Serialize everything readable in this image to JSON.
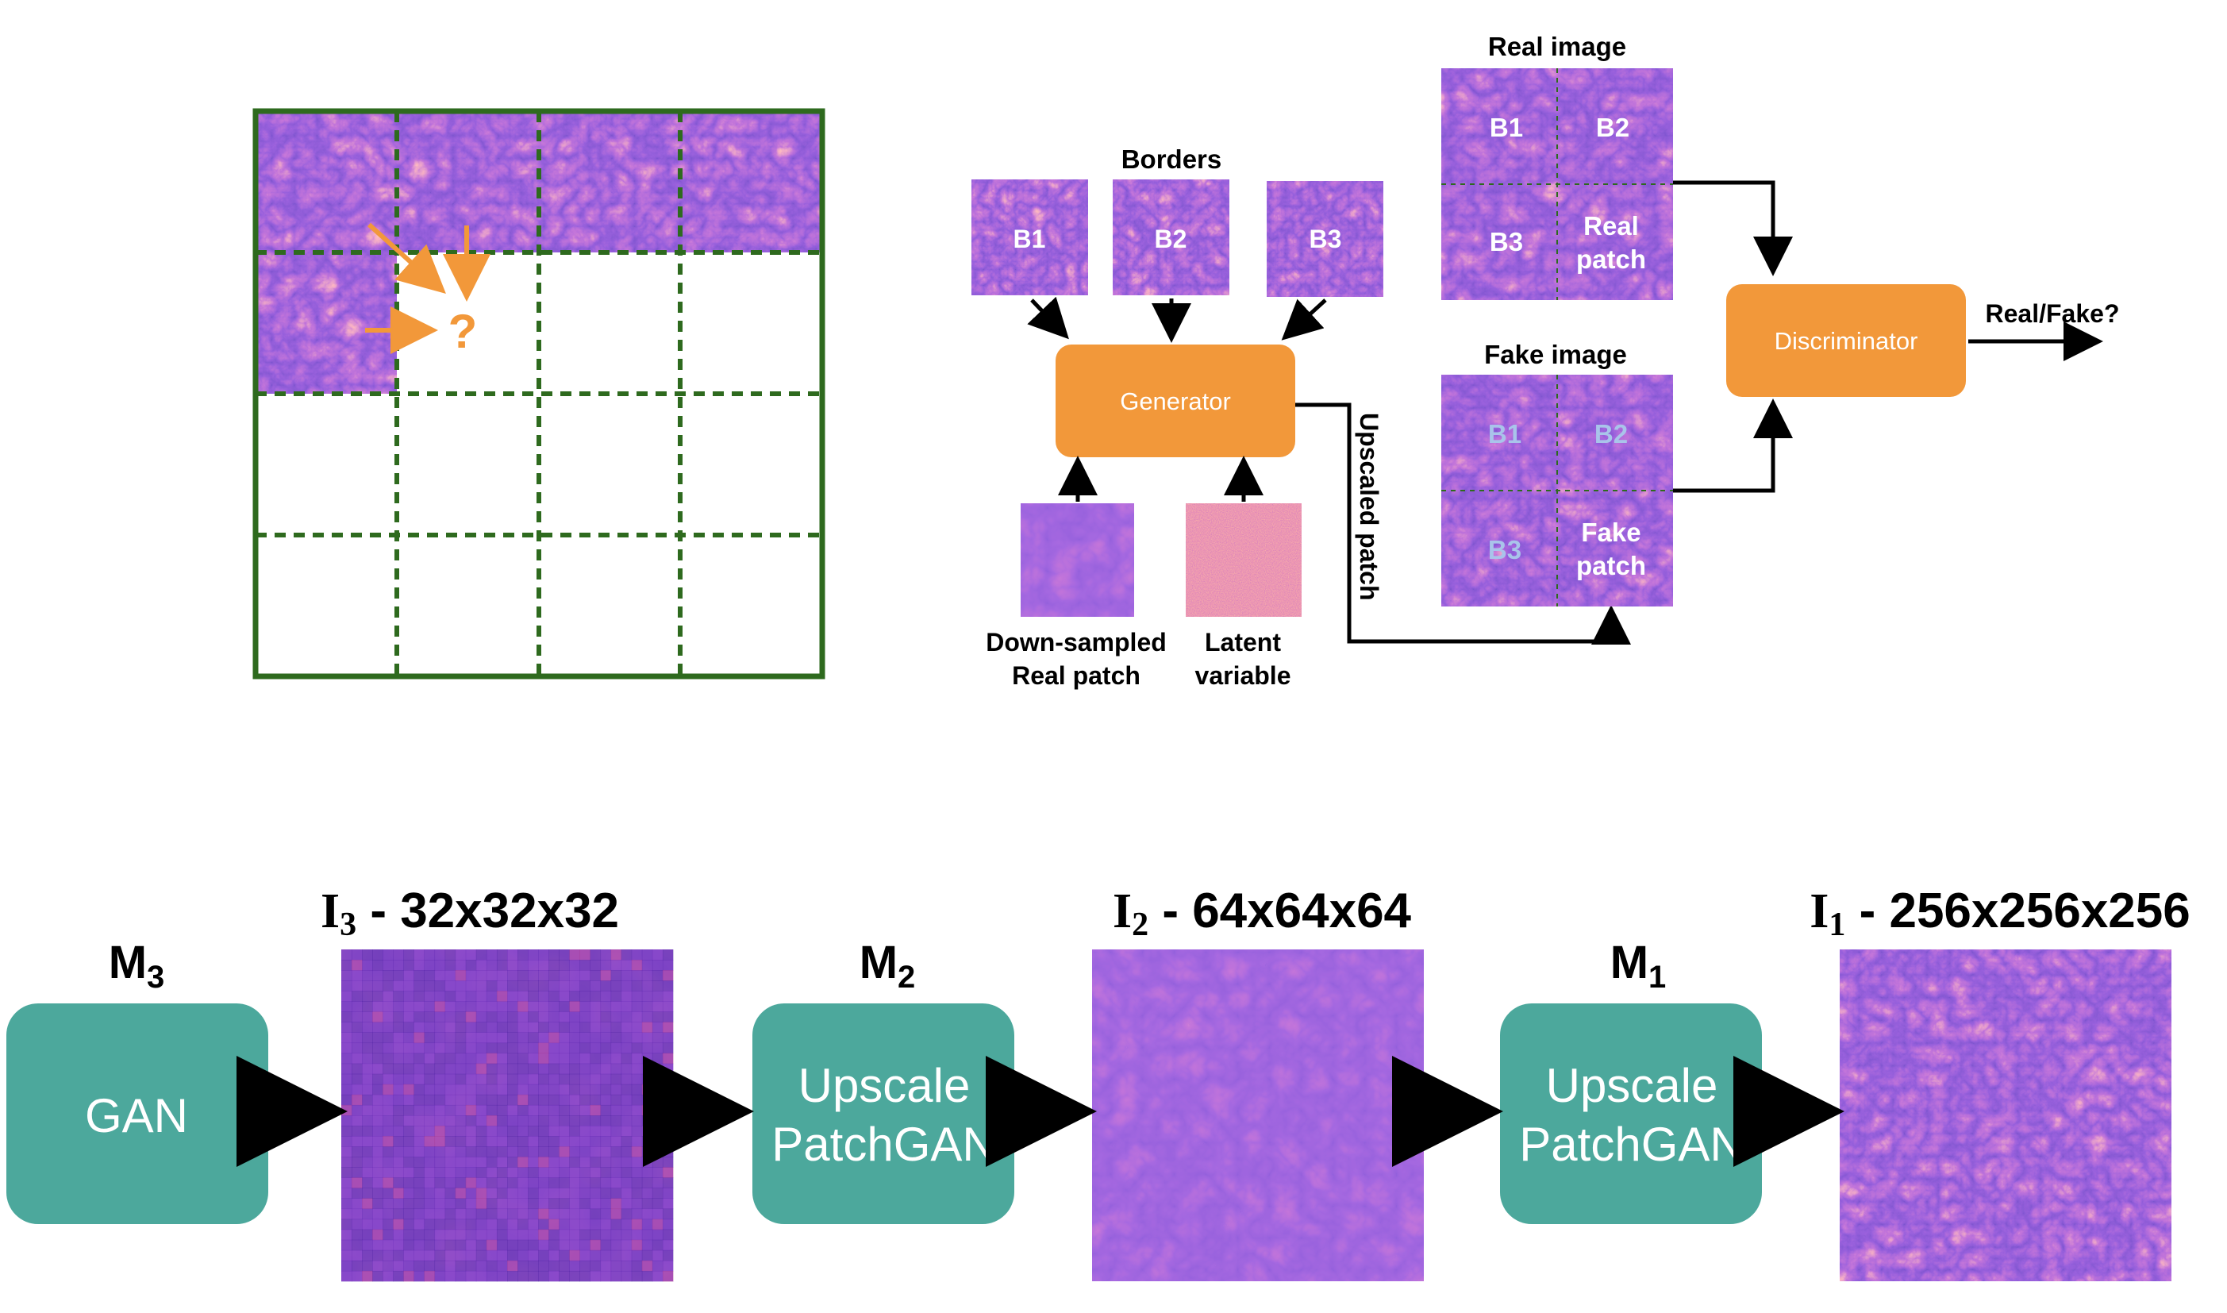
{
  "colors": {
    "orange": "#F2983A",
    "teal": "#4CA89C",
    "grid_green": "#2E6A1E",
    "lightblue_label": "#A9C4EA",
    "field_dark": "#3A1C9E",
    "field_mid": "#6A2BB8",
    "field_bright": "#E0508C"
  },
  "left_grid": {
    "query_mark": "?"
  },
  "pipeline": {
    "borders_title": "Borders",
    "borders": [
      "B1",
      "B2",
      "B3"
    ],
    "generator": "Generator",
    "downsampled_line1": "Down-sampled",
    "downsampled_line2": "Real patch",
    "latent_line1": "Latent",
    "latent_line2": "variable",
    "upscaled_patch": "Upscaled patch",
    "real_image_title": "Real image",
    "real_cells": [
      "B1",
      "B2",
      "B3"
    ],
    "real_patch_line1": "Real",
    "real_patch_line2": "patch",
    "fake_image_title": "Fake image",
    "fake_cells": [
      "B1",
      "B2",
      "B3"
    ],
    "fake_patch_line1": "Fake",
    "fake_patch_line2": "patch",
    "discriminator": "Discriminator",
    "output": "Real/Fake?"
  },
  "hierarchy": {
    "models": [
      {
        "letter": "M",
        "sub": "3",
        "box_line1": "GAN",
        "box_line2": ""
      },
      {
        "letter": "M",
        "sub": "2",
        "box_line1": "Upscale",
        "box_line2": "PatchGAN"
      },
      {
        "letter": "M",
        "sub": "1",
        "box_line1": "Upscale",
        "box_line2": "PatchGAN"
      }
    ],
    "images": [
      {
        "letter": "I",
        "sub": "3",
        "size": " - 32x32x32"
      },
      {
        "letter": "I",
        "sub": "2",
        "size": " - 64x64x64"
      },
      {
        "letter": "I",
        "sub": "1",
        "size": " - 256x256x256"
      }
    ]
  }
}
